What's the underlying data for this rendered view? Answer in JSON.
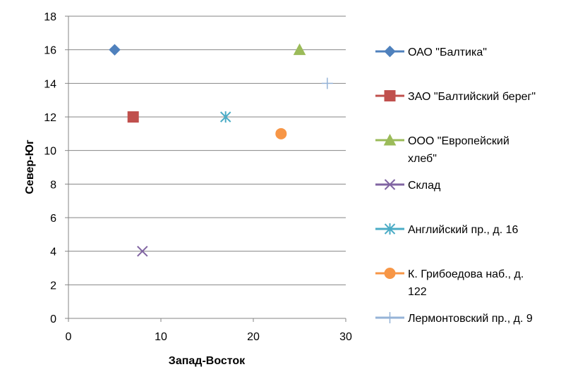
{
  "chart_data": {
    "type": "scatter",
    "xlabel": "Запад-Восток",
    "ylabel": "Север-Юг",
    "xlim": [
      0,
      30
    ],
    "ylim": [
      0,
      18
    ],
    "xticks": [
      0,
      10,
      20,
      30
    ],
    "yticks": [
      0,
      2,
      4,
      6,
      8,
      10,
      12,
      14,
      16,
      18
    ],
    "grid": "horizontal",
    "legend_position": "right",
    "series": [
      {
        "name": "ОАО \"Балтика\"",
        "legend_lines": [
          "ОАО \"Балтика\""
        ],
        "marker": "diamond",
        "color": "#4F81BD",
        "x": 5,
        "y": 16
      },
      {
        "name": "ЗАО \"Балтийский берег\"",
        "legend_lines": [
          "ЗАО \"Балтийский берег\""
        ],
        "marker": "square",
        "color": "#C0504D",
        "x": 7,
        "y": 12
      },
      {
        "name": "ООО \"Европейский хлеб\"",
        "legend_lines": [
          "ООО \"Европейский",
          "хлеб\""
        ],
        "marker": "triangle",
        "color": "#9BBB59",
        "x": 25,
        "y": 16
      },
      {
        "name": "Склад",
        "legend_lines": [
          "Склад"
        ],
        "marker": "x",
        "color": "#8064A2",
        "x": 8,
        "y": 4
      },
      {
        "name": "Английский пр., д. 16",
        "legend_lines": [
          "Английский пр., д. 16"
        ],
        "marker": "star",
        "color": "#4BACC6",
        "x": 17,
        "y": 12
      },
      {
        "name": "К. Грибоедова наб., д. 122",
        "legend_lines": [
          "К. Грибоедова наб., д.",
          "122"
        ],
        "marker": "circle",
        "color": "#F79646",
        "x": 23,
        "y": 11
      },
      {
        "name": "Лермонтовский пр., д. 9",
        "legend_lines": [
          "Лермонтовский пр., д. 9"
        ],
        "marker": "plus",
        "color": "#95B3D7",
        "x": 28,
        "y": 14
      }
    ]
  }
}
